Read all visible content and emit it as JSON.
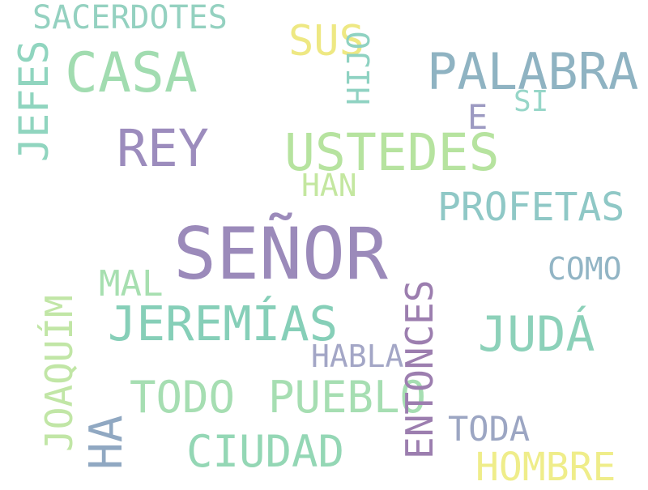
{
  "words": [
    {
      "text": "SEÑOR",
      "color": "#9b8aba"
    },
    {
      "text": "PALABRA",
      "color": "#8fb3c2"
    },
    {
      "text": "CASA",
      "color": "#a1dcb0"
    },
    {
      "text": "USTEDES",
      "color": "#b6e39f"
    },
    {
      "text": "REY",
      "color": "#9c8cbd"
    },
    {
      "text": "JEREMÍAS",
      "color": "#86cfb8"
    },
    {
      "text": "JUDÁ",
      "color": "#8cd1b9"
    },
    {
      "text": "TODO",
      "color": "#a6deb2"
    },
    {
      "text": "PUEBLO",
      "color": "#a6deb2"
    },
    {
      "text": "CIUDAD",
      "color": "#94d7b5"
    },
    {
      "text": "PROFETAS",
      "color": "#8fc8c6"
    },
    {
      "text": "SUS",
      "color": "#eee883"
    },
    {
      "text": "SACERDOTES",
      "color": "#94d1c0"
    },
    {
      "text": "JEFES",
      "color": "#90d5bf"
    },
    {
      "text": "SI",
      "color": "#8fd2c2"
    },
    {
      "text": "HIJO",
      "color": "#97d6c8"
    },
    {
      "text": "E",
      "color": "#9c9ac2"
    },
    {
      "text": "HAN",
      "color": "#c4e7a0"
    },
    {
      "text": "MAL",
      "color": "#a7dfb0"
    },
    {
      "text": "COMO",
      "color": "#92b5c5"
    },
    {
      "text": "HABLA",
      "color": "#a3a6c6"
    },
    {
      "text": "JOAQUÍM",
      "color": "#c1e6a6"
    },
    {
      "text": "TODA",
      "color": "#90a8c2"
    },
    {
      "text": "HA",
      "color": "#9c7eaf"
    },
    {
      "text": "ENTONCES",
      "color": "#9ca6c3"
    },
    {
      "text": "HOMBRE",
      "color": "#efed8a"
    }
  ]
}
